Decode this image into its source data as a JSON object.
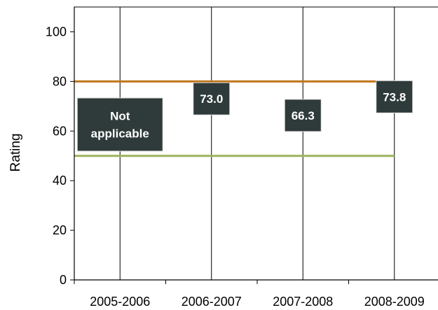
{
  "chart_data": {
    "type": "scatter",
    "categories": [
      "2005-2006",
      "2006-2007",
      "2007-2008",
      "2008-2009"
    ],
    "ylabel": "Rating",
    "ylim": [
      0,
      110
    ],
    "yticks": [
      0,
      20,
      40,
      60,
      80,
      100
    ],
    "points": [
      {
        "category": "2005-2006",
        "value": null,
        "label_lines": [
          "Not",
          "applicable"
        ]
      },
      {
        "category": "2006-2007",
        "value": 73.0,
        "label_lines": [
          "73.0"
        ]
      },
      {
        "category": "2007-2008",
        "value": 66.3,
        "label_lines": [
          "66.3"
        ]
      },
      {
        "category": "2008-2009",
        "value": 73.8,
        "label_lines": [
          "73.8"
        ]
      }
    ],
    "reference_lines": [
      {
        "value": 80,
        "color": "#c0761a"
      },
      {
        "value": 50,
        "color": "#9bb35a"
      }
    ],
    "grid": "vertical",
    "label_box_color": "#2f3a3a"
  }
}
